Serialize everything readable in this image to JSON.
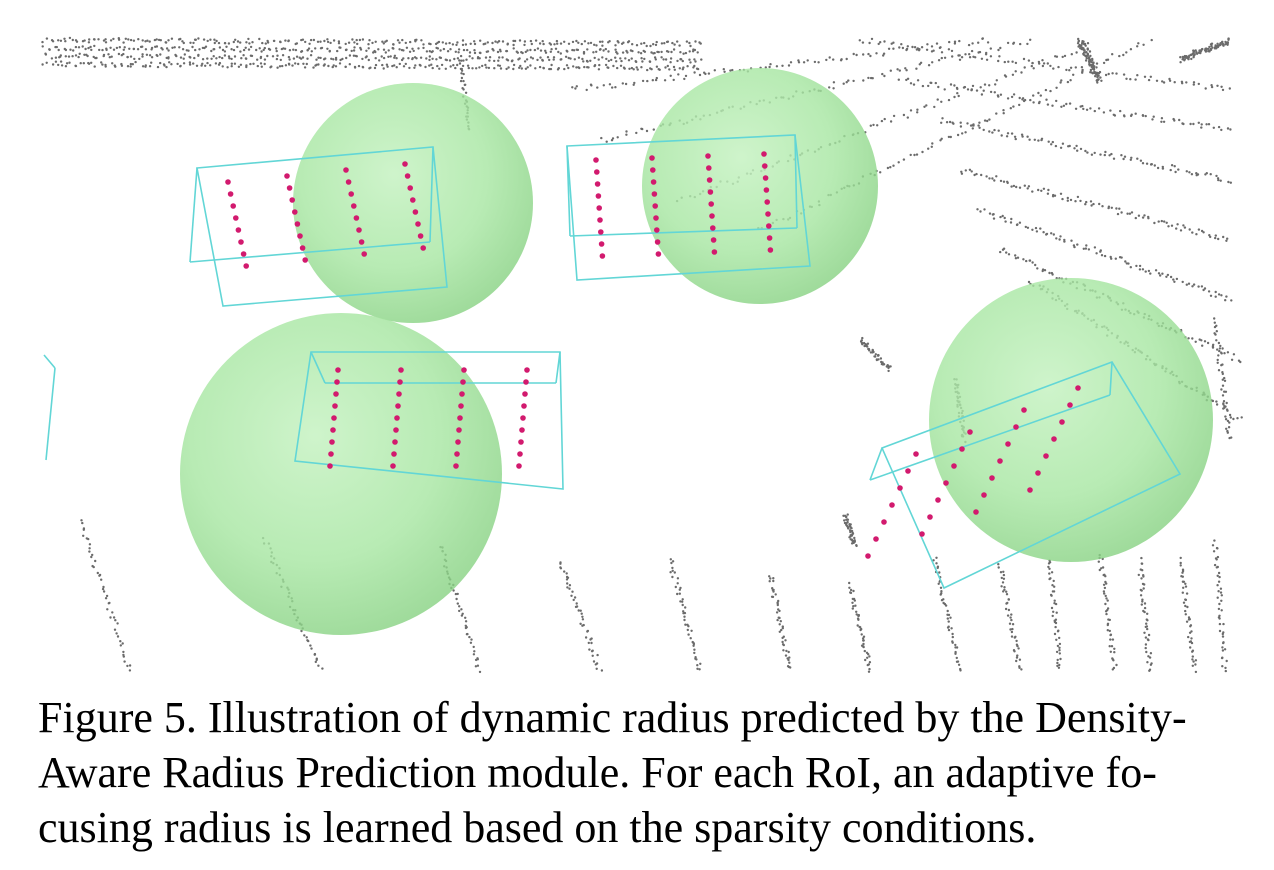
{
  "caption": {
    "lines": [
      "Figure 5. Illustration of dynamic radius predicted by the Density-",
      "Aware Radius Prediction module.  For each RoI, an adaptive fo-",
      "cusing radius is learned based on the sparsity conditions."
    ]
  },
  "figure": {
    "colors": {
      "background_points": "#6b6b6b",
      "box_edges": "#62d6d6",
      "roi_points": "#d21a6e",
      "sphere_fill": "#9fe39b"
    }
  }
}
